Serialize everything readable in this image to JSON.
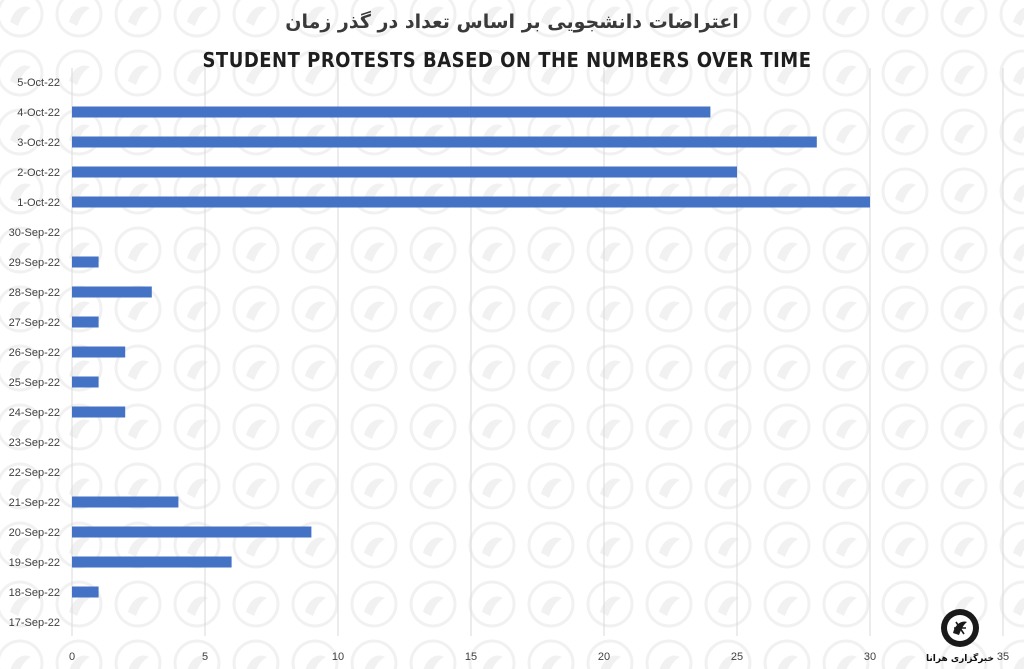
{
  "chart_data": {
    "type": "bar",
    "orientation": "horizontal",
    "title": "اعتراضات دانشجویی بر اساس تعداد در گذر زمان",
    "subtitle": "STUDENT PROTESTS BASED ON THE NUMBERS OVER TIME",
    "categories": [
      "17-Sep-22",
      "18-Sep-22",
      "19-Sep-22",
      "20-Sep-22",
      "21-Sep-22",
      "22-Sep-22",
      "23-Sep-22",
      "24-Sep-22",
      "25-Sep-22",
      "26-Sep-22",
      "27-Sep-22",
      "28-Sep-22",
      "29-Sep-22",
      "30-Sep-22",
      "1-Oct-22",
      "2-Oct-22",
      "3-Oct-22",
      "4-Oct-22",
      "5-Oct-22"
    ],
    "values": [
      0,
      1,
      6,
      9,
      4,
      0,
      0,
      2,
      1,
      2,
      1,
      3,
      1,
      0,
      30,
      25,
      28,
      24,
      0
    ],
    "xlim": [
      0,
      35
    ],
    "xticks": [
      0,
      5,
      10,
      15,
      20,
      25,
      30,
      35
    ],
    "grid": "vertical",
    "legend": "none",
    "bar_color": "#4472c4",
    "grid_color": "#d9d9d9"
  },
  "logo": {
    "icon": "hrana-emblem-icon",
    "caption": "خبرگزاری هرانا"
  }
}
